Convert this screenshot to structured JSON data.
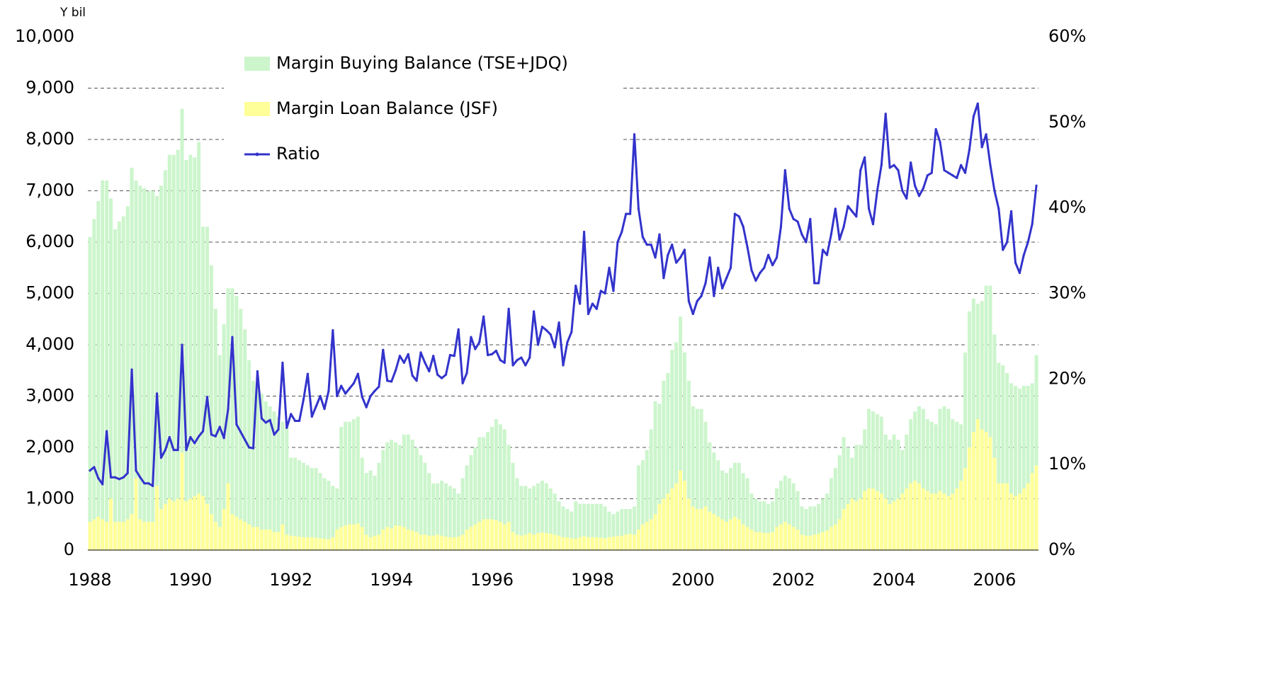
{
  "chart_data": {
    "type": "bar",
    "y_axis_label": "Y bil",
    "categories": [
      "1988",
      null,
      null,
      null,
      null,
      null,
      null,
      null,
      null,
      null,
      null,
      null,
      null,
      null,
      null,
      null,
      null,
      null,
      null,
      null,
      null,
      null,
      null,
      null,
      "1990",
      null,
      null,
      null,
      null,
      null,
      null,
      null,
      null,
      null,
      null,
      null,
      null,
      null,
      null,
      null,
      null,
      null,
      null,
      null,
      null,
      null,
      null,
      null,
      "1992",
      null,
      null,
      null,
      null,
      null,
      null,
      null,
      null,
      null,
      null,
      null,
      null,
      null,
      null,
      null,
      null,
      null,
      null,
      null,
      null,
      null,
      null,
      null,
      "1994",
      null,
      null,
      null,
      null,
      null,
      null,
      null,
      null,
      null,
      null,
      null,
      null,
      null,
      null,
      null,
      null,
      null,
      null,
      null,
      null,
      null,
      null,
      null,
      "1996",
      null,
      null,
      null,
      null,
      null,
      null,
      null,
      null,
      null,
      null,
      null,
      null,
      null,
      null,
      null,
      null,
      null,
      null,
      null,
      null,
      null,
      null,
      null,
      "1998",
      null,
      null,
      null,
      null,
      null,
      null,
      null,
      null,
      null,
      null,
      null,
      null,
      null,
      null,
      null,
      null,
      null,
      null,
      null,
      null,
      null,
      null,
      null,
      "2000",
      null,
      null,
      null,
      null,
      null,
      null,
      null,
      null,
      null,
      null,
      null,
      null,
      null,
      null,
      null,
      null,
      null,
      null,
      null,
      null,
      null,
      null,
      null,
      "2002",
      null,
      null,
      null,
      null,
      null,
      null,
      null,
      null,
      null,
      null,
      null,
      null,
      null,
      null,
      null,
      null,
      null,
      null,
      null,
      null,
      null,
      null,
      null,
      "2004",
      null,
      null,
      null,
      null,
      null,
      null,
      null,
      null,
      null,
      null,
      null,
      null,
      null,
      null,
      null,
      null,
      null,
      null,
      null,
      null,
      null,
      null,
      null,
      "2006",
      null,
      null,
      null,
      null,
      null,
      null,
      null,
      null,
      null,
      null
    ],
    "series": [
      {
        "name": "Margin Buying Balance (TSE+JDQ)",
        "type": "bar",
        "color": "#ccf5cc",
        "values": [
          6100,
          6450,
          6800,
          7200,
          7200,
          6850,
          6250,
          6400,
          6500,
          6700,
          7450,
          7200,
          7100,
          7050,
          7000,
          7000,
          6900,
          7100,
          7400,
          7700,
          7700,
          7800,
          8600,
          7600,
          7700,
          7650,
          7950,
          6300,
          6300,
          5550,
          4700,
          3800,
          4400,
          5100,
          5100,
          4950,
          4700,
          4300,
          3700,
          3300,
          3200,
          3050,
          2900,
          2800,
          2700,
          2600,
          2500,
          2400,
          1800,
          1800,
          1750,
          1700,
          1650,
          1600,
          1600,
          1500,
          1400,
          1350,
          1250,
          1200,
          2400,
          2500,
          2500,
          2550,
          2600,
          1800,
          1500,
          1550,
          1450,
          1700,
          1950,
          2100,
          2150,
          2100,
          2050,
          2250,
          2250,
          2150,
          2000,
          1850,
          1700,
          1500,
          1300,
          1300,
          1350,
          1300,
          1250,
          1200,
          1100,
          1400,
          1650,
          1850,
          2000,
          2200,
          2200,
          2300,
          2400,
          2550,
          2450,
          2350,
          2050,
          1700,
          1400,
          1250,
          1250,
          1200,
          1250,
          1300,
          1350,
          1300,
          1200,
          1100,
          950,
          850,
          800,
          750,
          950,
          900,
          900,
          900,
          900,
          900,
          900,
          850,
          750,
          700,
          750,
          800,
          800,
          800,
          850,
          1650,
          1750,
          1950,
          2350,
          2900,
          2850,
          3300,
          3450,
          3900,
          4050,
          4550,
          3850,
          3300,
          2800,
          2750,
          2750,
          2500,
          2100,
          1900,
          1750,
          1550,
          1500,
          1600,
          1700,
          1700,
          1500,
          1400,
          1100,
          1000,
          950,
          950,
          900,
          950,
          1200,
          1350,
          1450,
          1400,
          1300,
          1150,
          850,
          800,
          850,
          850,
          900,
          1000,
          1100,
          1400,
          1600,
          1850,
          2200,
          2000,
          1800,
          2050,
          2050,
          2350,
          2750,
          2700,
          2650,
          2600,
          2250,
          2150,
          2250,
          2150,
          1950,
          2250,
          2550,
          2700,
          2800,
          2750,
          2550,
          2500,
          2450,
          2750,
          2800,
          2750,
          2550,
          2500,
          2450,
          3850,
          4650,
          4900,
          4800,
          4850,
          5150,
          5150,
          4200,
          3650,
          3600,
          3450,
          3250,
          3200,
          3150,
          3200,
          3200,
          3250,
          3800
        ]
      },
      {
        "name": "Margin Loan Balance (JSF)",
        "type": "bar",
        "color": "#ffff99",
        "values": [
          550,
          600,
          650,
          600,
          550,
          1000,
          550,
          550,
          550,
          600,
          700,
          1400,
          600,
          550,
          550,
          550,
          1250,
          800,
          900,
          1000,
          950,
          1000,
          1900,
          950,
          1000,
          1050,
          1100,
          1050,
          900,
          700,
          550,
          450,
          800,
          1300,
          700,
          650,
          600,
          550,
          500,
          450,
          450,
          400,
          400,
          400,
          350,
          350,
          500,
          300,
          280,
          270,
          260,
          250,
          250,
          250,
          240,
          230,
          220,
          210,
          250,
          400,
          450,
          480,
          500,
          500,
          520,
          450,
          300,
          250,
          280,
          300,
          400,
          450,
          420,
          480,
          470,
          450,
          400,
          380,
          350,
          300,
          300,
          280,
          280,
          300,
          280,
          260,
          250,
          250,
          260,
          300,
          400,
          450,
          500,
          550,
          600,
          600,
          600,
          580,
          550,
          500,
          550,
          350,
          300,
          280,
          300,
          330,
          300,
          330,
          340,
          330,
          320,
          300,
          280,
          250,
          250,
          230,
          220,
          250,
          270,
          250,
          250,
          250,
          240,
          230,
          250,
          260,
          270,
          280,
          300,
          320,
          300,
          400,
          500,
          550,
          600,
          700,
          900,
          1000,
          1100,
          1200,
          1300,
          1550,
          1350,
          1000,
          850,
          800,
          800,
          850,
          750,
          700,
          650,
          600,
          550,
          600,
          650,
          600,
          500,
          450,
          400,
          350,
          350,
          330,
          330,
          350,
          450,
          500,
          550,
          500,
          450,
          400,
          300,
          280,
          280,
          300,
          320,
          350,
          380,
          450,
          500,
          600,
          800,
          900,
          1000,
          950,
          1000,
          1150,
          1200,
          1200,
          1150,
          1100,
          1000,
          900,
          950,
          1000,
          1100,
          1200,
          1300,
          1350,
          1300,
          1200,
          1150,
          1100,
          1100,
          1150,
          1100,
          1050,
          1100,
          1200,
          1350,
          1600,
          2000,
          2300,
          2550,
          2350,
          2300,
          2200,
          1800,
          1300,
          1300,
          1300,
          1100,
          1050,
          1100,
          1200,
          1300,
          1500,
          1650
        ]
      },
      {
        "name": "Ratio",
        "type": "line",
        "axis": "y2",
        "color": "#3333cc",
        "values": [
          9.3,
          9.7,
          8.4,
          7.7,
          13.9,
          8.5,
          8.5,
          8.3,
          8.5,
          9.0,
          21.1,
          9.3,
          8.5,
          7.8,
          7.8,
          7.5,
          18.3,
          10.8,
          11.7,
          13.2,
          11.7,
          11.7,
          24.0,
          11.7,
          13.2,
          12.5,
          13.3,
          13.9,
          17.9,
          13.5,
          13.3,
          14.4,
          13.1,
          16.5,
          24.9,
          14.7,
          13.8,
          12.9,
          12.0,
          11.9,
          20.9,
          15.4,
          14.9,
          15.2,
          13.5,
          14.1,
          21.9,
          14.3,
          15.9,
          15.1,
          15.1,
          17.6,
          20.6,
          15.6,
          16.8,
          18.0,
          16.5,
          18.6,
          25.7,
          18.0,
          19.2,
          18.3,
          18.9,
          19.5,
          20.6,
          17.9,
          16.7,
          18.0,
          18.6,
          19.1,
          23.4,
          19.8,
          19.7,
          21.0,
          22.7,
          21.9,
          22.9,
          20.4,
          19.8,
          23.1,
          21.9,
          20.9,
          22.7,
          20.5,
          20.1,
          20.5,
          22.8,
          22.7,
          25.8,
          19.5,
          20.7,
          24.9,
          23.5,
          24.3,
          27.3,
          22.8,
          22.9,
          23.3,
          22.2,
          21.9,
          28.2,
          21.6,
          22.2,
          22.5,
          21.6,
          22.5,
          27.9,
          24.0,
          26.1,
          25.7,
          25.2,
          23.7,
          26.6,
          21.6,
          24.3,
          25.5,
          30.9,
          28.8,
          37.2,
          27.6,
          28.8,
          28.2,
          30.3,
          30.0,
          33.0,
          30.3,
          36.0,
          37.2,
          39.3,
          39.3,
          48.6,
          39.9,
          36.6,
          35.7,
          35.7,
          34.2,
          36.9,
          31.8,
          34.5,
          35.7,
          33.6,
          34.2,
          35.1,
          29.1,
          27.6,
          29.1,
          29.7,
          31.2,
          34.2,
          29.7,
          33.0,
          30.6,
          31.8,
          33.0,
          39.3,
          39.0,
          37.8,
          35.4,
          32.7,
          31.5,
          32.4,
          33.0,
          34.5,
          33.3,
          34.2,
          37.8,
          44.4,
          39.9,
          38.7,
          38.4,
          36.9,
          36.0,
          38.7,
          31.2,
          31.2,
          35.1,
          34.5,
          36.9,
          39.9,
          36.3,
          37.8,
          40.2,
          39.6,
          39.0,
          44.4,
          45.9,
          39.9,
          38.1,
          42.0,
          45.0,
          51.0,
          44.7,
          45.0,
          44.4,
          42.0,
          41.1,
          45.3,
          42.6,
          41.4,
          42.3,
          43.8,
          44.1,
          49.2,
          47.7,
          44.4,
          44.1,
          43.8,
          43.5,
          45.0,
          44.1,
          46.8,
          50.7,
          52.2,
          47.1,
          48.6,
          45.0,
          42.0,
          39.9,
          35.1,
          36.0,
          39.6,
          33.6,
          32.4,
          34.5,
          36.0,
          38.1,
          42.6
        ]
      }
    ],
    "ylim": [
      0,
      10000
    ],
    "yticks": [
      0,
      {
        "value": 1000,
        "label": "1,000"
      },
      {
        "value": 2000,
        "label": "2,000"
      },
      {
        "value": 3000,
        "label": "3,000"
      },
      {
        "value": 4000,
        "label": "4,000"
      },
      {
        "value": 5000,
        "label": "5,000"
      },
      {
        "value": 6000,
        "label": "6,000"
      },
      {
        "value": 7000,
        "label": "7,000"
      },
      {
        "value": 8000,
        "label": "8,000"
      },
      {
        "value": 9000,
        "label": "9,000"
      },
      {
        "value": 10000,
        "label": "10,000"
      }
    ],
    "y2lim": [
      0,
      60
    ],
    "y2ticks": [
      {
        "value": 0,
        "label": "0%"
      },
      {
        "value": 10,
        "label": "10%"
      },
      {
        "value": 20,
        "label": "20%"
      },
      {
        "value": 30,
        "label": "30%"
      },
      {
        "value": 40,
        "label": "40%"
      },
      {
        "value": 50,
        "label": "50%"
      },
      {
        "value": 60,
        "label": "60%"
      }
    ],
    "grid": true,
    "legend": "top"
  }
}
